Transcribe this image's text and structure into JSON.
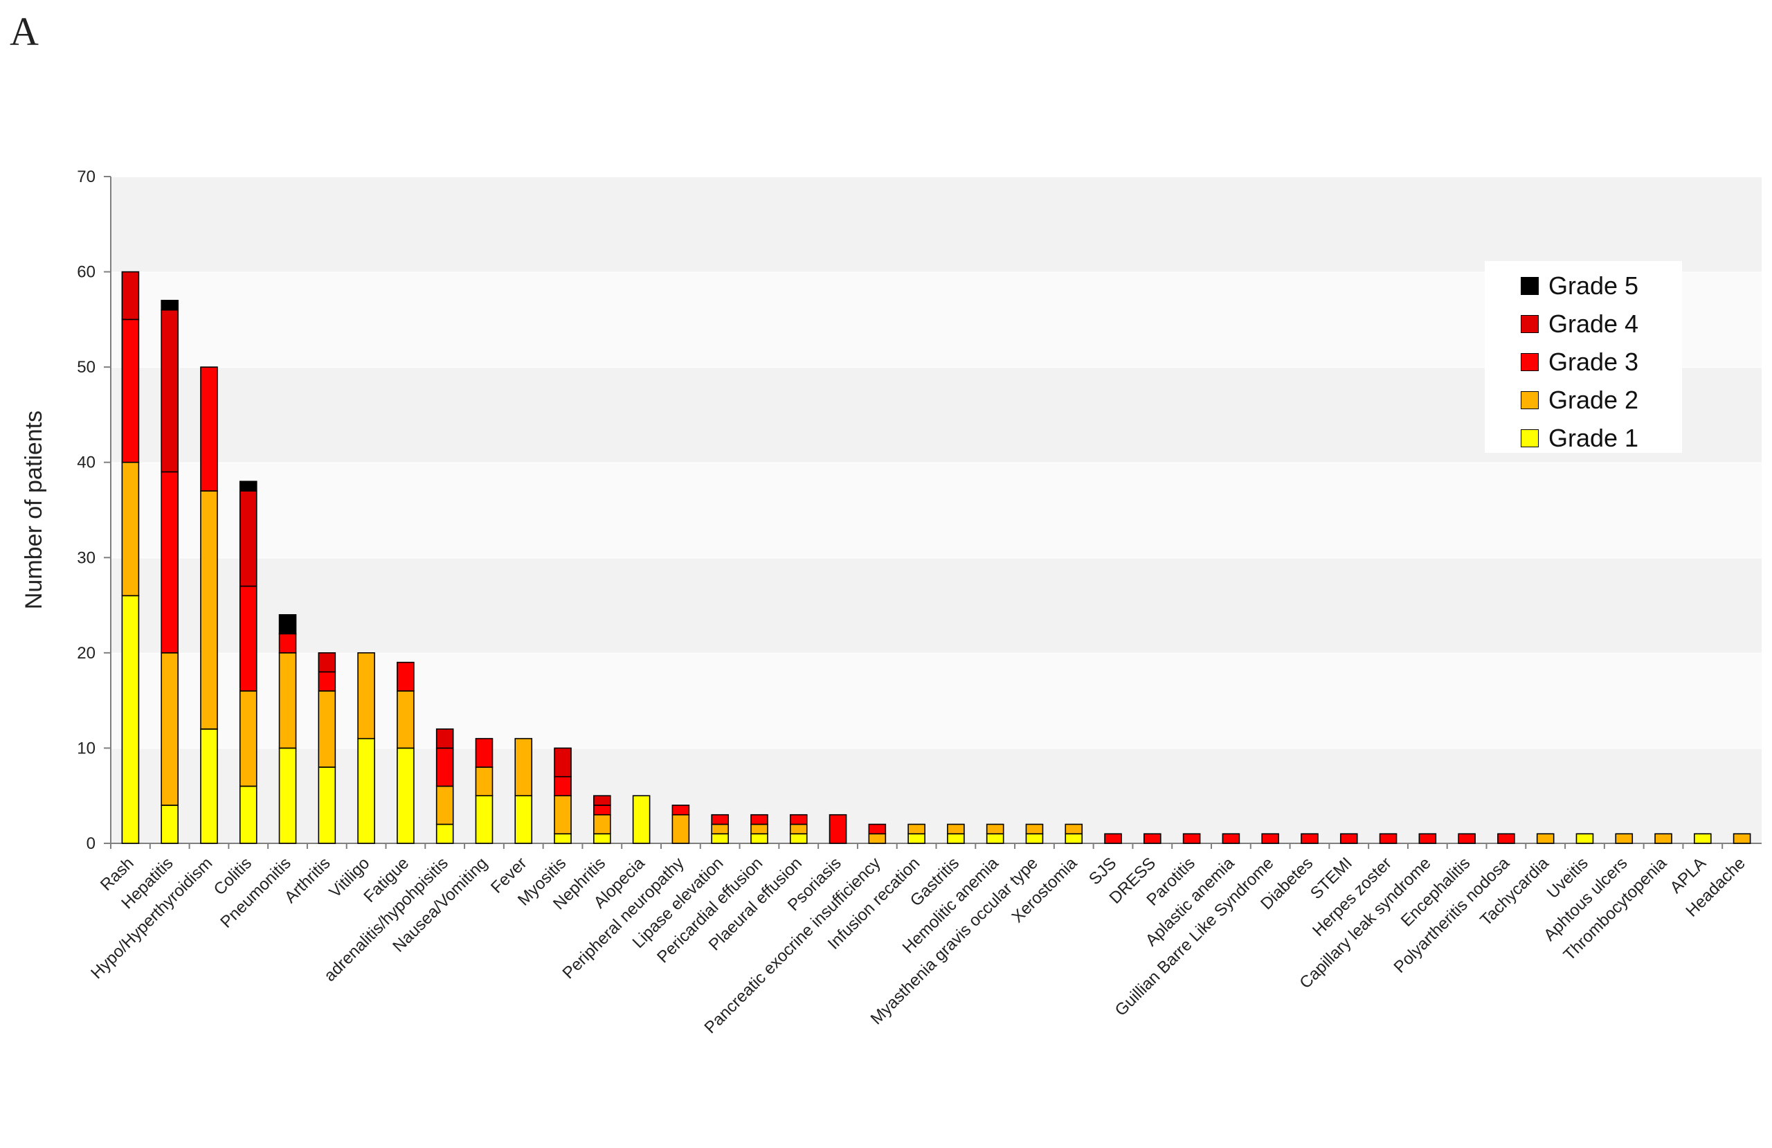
{
  "panel_label": "A",
  "chart_data": {
    "type": "bar",
    "stacked": true,
    "title": "",
    "xlabel": "",
    "ylabel": "Number of patients",
    "ylim": [
      0,
      70
    ],
    "yticks": [
      0,
      10,
      20,
      30,
      40,
      50,
      60,
      70
    ],
    "grid": "horizontal bands",
    "legend_position": "top-right",
    "categories": [
      "Rash",
      "Hepatitis",
      "Hypo/Hyperthyroidism",
      "Colitis",
      "Pneumonitis",
      "Arthritis",
      "Vitiligo",
      "Fatigue",
      "adrenalitis/hypohpisitis",
      "Nausea/Vomiting",
      "Fever",
      "Myositis",
      "Nephritis",
      "Alopecia",
      "Peripheral neuropathy",
      "Lipase elevation",
      "Pericardial effusion",
      "Plaeural effusion",
      "Psoriasis",
      "Pancreatic exocrine insufficiency",
      "Infusion recation",
      "Gastritis",
      "Hemolitic anemia",
      "Myasthenia gravis occular type",
      "Xerostomia",
      "SJS",
      "DRESS",
      "Parotitis",
      "Aplastic anemia",
      "Guillian Barre Like Syndrome",
      "Diabetes",
      "STEMI",
      "Herpes zoster",
      "Capillary leak syndrome",
      "Encephalitis",
      "Polyartheritis nodosa",
      "Tachycardia",
      "Uveitis",
      "Aphtous ulcers",
      "Thrombocytopenia",
      "APLA",
      "Headache"
    ],
    "series": [
      {
        "name": "Grade 1",
        "color": "#ffff00",
        "values": [
          26,
          4,
          12,
          6,
          10,
          8,
          11,
          10,
          2,
          5,
          5,
          1,
          1,
          5,
          0,
          1,
          1,
          1,
          0,
          0,
          1,
          1,
          1,
          1,
          1,
          0,
          0,
          0,
          0,
          0,
          0,
          0,
          0,
          0,
          0,
          0,
          0,
          1,
          0,
          0,
          1,
          0
        ]
      },
      {
        "name": "Grade 2",
        "color": "#ffb300",
        "values": [
          14,
          16,
          25,
          10,
          10,
          8,
          9,
          6,
          4,
          3,
          6,
          4,
          2,
          0,
          3,
          1,
          1,
          1,
          0,
          1,
          1,
          1,
          1,
          1,
          1,
          0,
          0,
          0,
          0,
          0,
          0,
          0,
          0,
          0,
          0,
          0,
          1,
          0,
          1,
          1,
          0,
          1
        ]
      },
      {
        "name": "Grade 3",
        "color": "#ff0000",
        "values": [
          15,
          19,
          13,
          11,
          2,
          2,
          0,
          3,
          4,
          3,
          0,
          2,
          1,
          0,
          1,
          1,
          1,
          1,
          3,
          1,
          0,
          0,
          0,
          0,
          0,
          1,
          1,
          1,
          1,
          1,
          1,
          1,
          1,
          1,
          1,
          1,
          0,
          0,
          0,
          0,
          0,
          0
        ]
      },
      {
        "name": "Grade 4",
        "color": "#e00000",
        "values": [
          5,
          17,
          0,
          10,
          0,
          2,
          0,
          0,
          2,
          0,
          0,
          3,
          1,
          0,
          0,
          0,
          0,
          0,
          0,
          0,
          0,
          0,
          0,
          0,
          0,
          0,
          0,
          0,
          0,
          0,
          0,
          0,
          0,
          0,
          0,
          0,
          0,
          0,
          0,
          0,
          0,
          0
        ]
      },
      {
        "name": "Grade 5",
        "color": "#000000",
        "values": [
          0,
          1,
          0,
          1,
          2,
          0,
          0,
          0,
          0,
          0,
          0,
          0,
          0,
          0,
          0,
          0,
          0,
          0,
          0,
          0,
          0,
          0,
          0,
          0,
          0,
          0,
          0,
          0,
          0,
          0,
          0,
          0,
          0,
          0,
          0,
          0,
          0,
          0,
          0,
          0,
          0,
          0
        ]
      }
    ]
  }
}
